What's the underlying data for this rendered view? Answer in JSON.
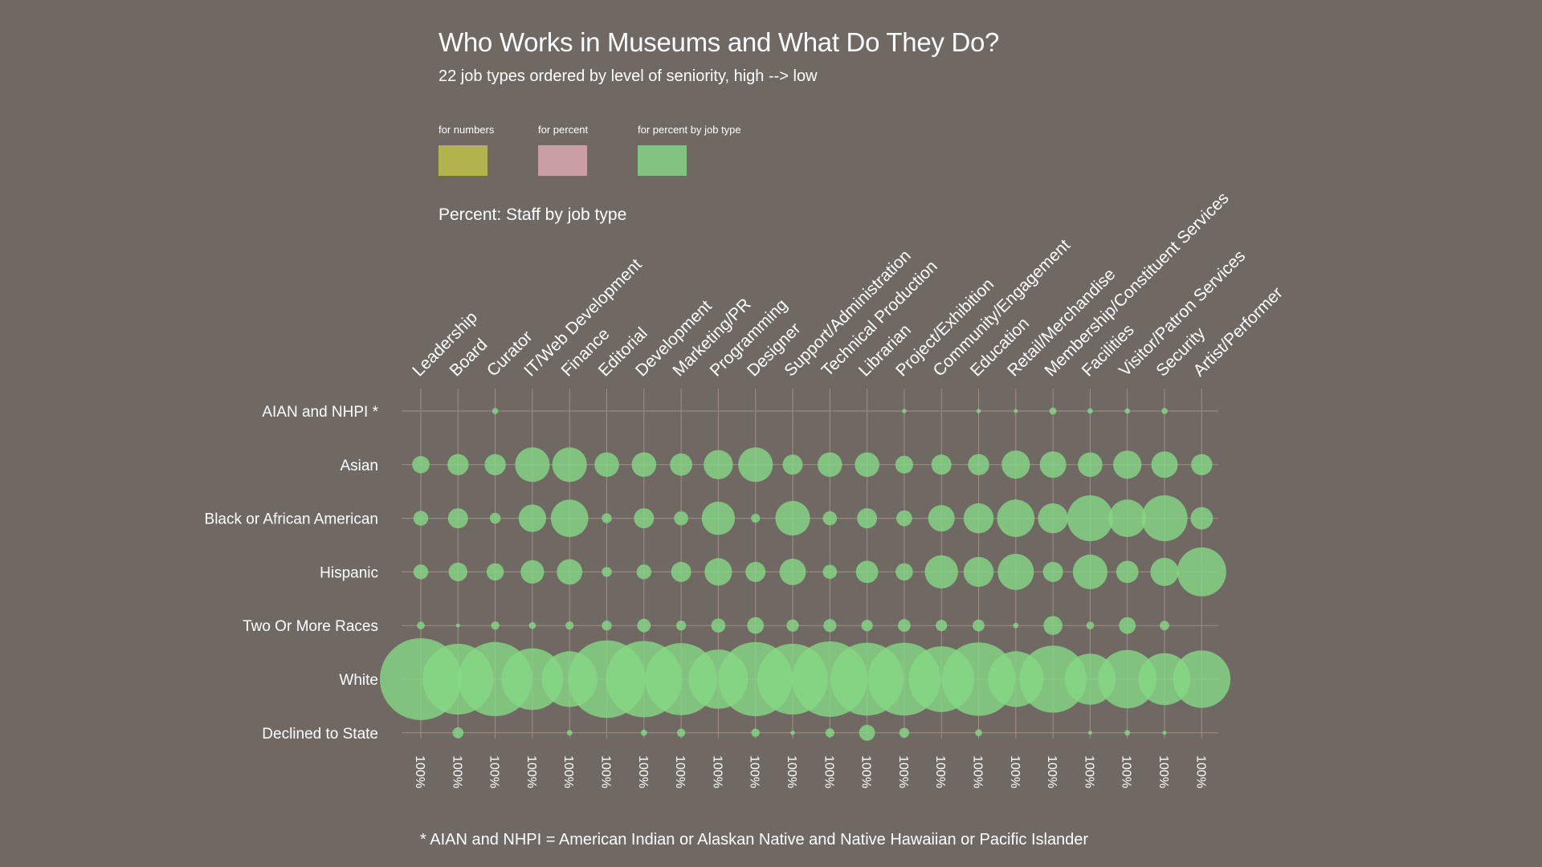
{
  "title": "Who Works in Museums and What Do They Do?",
  "subtitle": "22 job types ordered by level of seniority, high --> low",
  "legend": [
    {
      "label": "for numbers",
      "color": "#b3b34e"
    },
    {
      "label": "for percent",
      "color": "#c99fa3"
    },
    {
      "label": "for percent by job type",
      "color": "#82c381"
    }
  ],
  "section_title": "Percent: Staff by job type",
  "footnote": "* AIAN and NHPI = American Indian or Alaskan Native and Native Hawaiian or Pacific Islander",
  "colors": {
    "background": "#706963",
    "bubble": "#86d886",
    "grid": "#a08e85"
  },
  "chart_data": {
    "type": "bubble matrix",
    "columns": [
      "Leadership",
      "Board",
      "Curator",
      "IT/Web Development",
      "Finance",
      "Editorial",
      "Development",
      "Marketing/PR",
      "Programming",
      "Designer",
      "Support/Administration",
      "Technical Production",
      "Librarian",
      "Project/Exhibition",
      "Community/Engagement",
      "Education",
      "Retail/Merchandise",
      "Membership/Constituent Services",
      "Facilities",
      "Visitor/Patron Services",
      "Security",
      "Artist/Performer"
    ],
    "rows": [
      "AIAN and NHPI *",
      "Asian",
      "Black or African American",
      "Hispanic",
      "Two Or More Races",
      "White",
      "Declined to State"
    ],
    "column_totals": [
      "100%",
      "100%",
      "100%",
      "100%",
      "100%",
      "100%",
      "100%",
      "100%",
      "100%",
      "100%",
      "100%",
      "100%",
      "100%",
      "100%",
      "100%",
      "100%",
      "100%",
      "100%",
      "100%",
      "100%",
      "100%",
      "100%"
    ],
    "value_unit": "percent of staff within job type (approximate, read from bubble area)",
    "values": [
      [
        0,
        0,
        0.4,
        0,
        0,
        0,
        0,
        0,
        0,
        0,
        0,
        0,
        0,
        0.2,
        0,
        0.2,
        0.1,
        0.5,
        0.3,
        0.3,
        0.4,
        0
      ],
      [
        3,
        4.5,
        4.5,
        12,
        12,
        6,
        6,
        5,
        8.5,
        12,
        4,
        6,
        6,
        3.2,
        4,
        4.5,
        8,
        7,
        6,
        8,
        7,
        4.5
      ],
      [
        2.2,
        4,
        1.2,
        7.5,
        14,
        1,
        4,
        2,
        11,
        0.8,
        12,
        2,
        4,
        2.5,
        7,
        9,
        14,
        9,
        21,
        14,
        21,
        5
      ],
      [
        2.2,
        3.5,
        3,
        5.5,
        6.5,
        1,
        2.2,
        4,
        7.5,
        4,
        7,
        2,
        5,
        3,
        11,
        9,
        13,
        4,
        12,
        5,
        8,
        24
      ],
      [
        0.6,
        0.15,
        0.7,
        0.5,
        0.7,
        1,
        1.8,
        1,
        2,
        2.8,
        1.5,
        1.7,
        1.3,
        1.6,
        1.3,
        1.4,
        0.3,
        3.6,
        0.6,
        2.8,
        0.9,
        0
      ],
      [
        67,
        50,
        55,
        38,
        31,
        60,
        58,
        52,
        35,
        55,
        50,
        57,
        53,
        53,
        43,
        54,
        31,
        45,
        26,
        34,
        27,
        33
      ],
      [
        0,
        1.2,
        0,
        0,
        0.3,
        0,
        0.4,
        0.7,
        0,
        0.7,
        0.2,
        0.8,
        2.5,
        1,
        0,
        0.5,
        0,
        0,
        0.1,
        0.3,
        0.1,
        0
      ]
    ]
  }
}
